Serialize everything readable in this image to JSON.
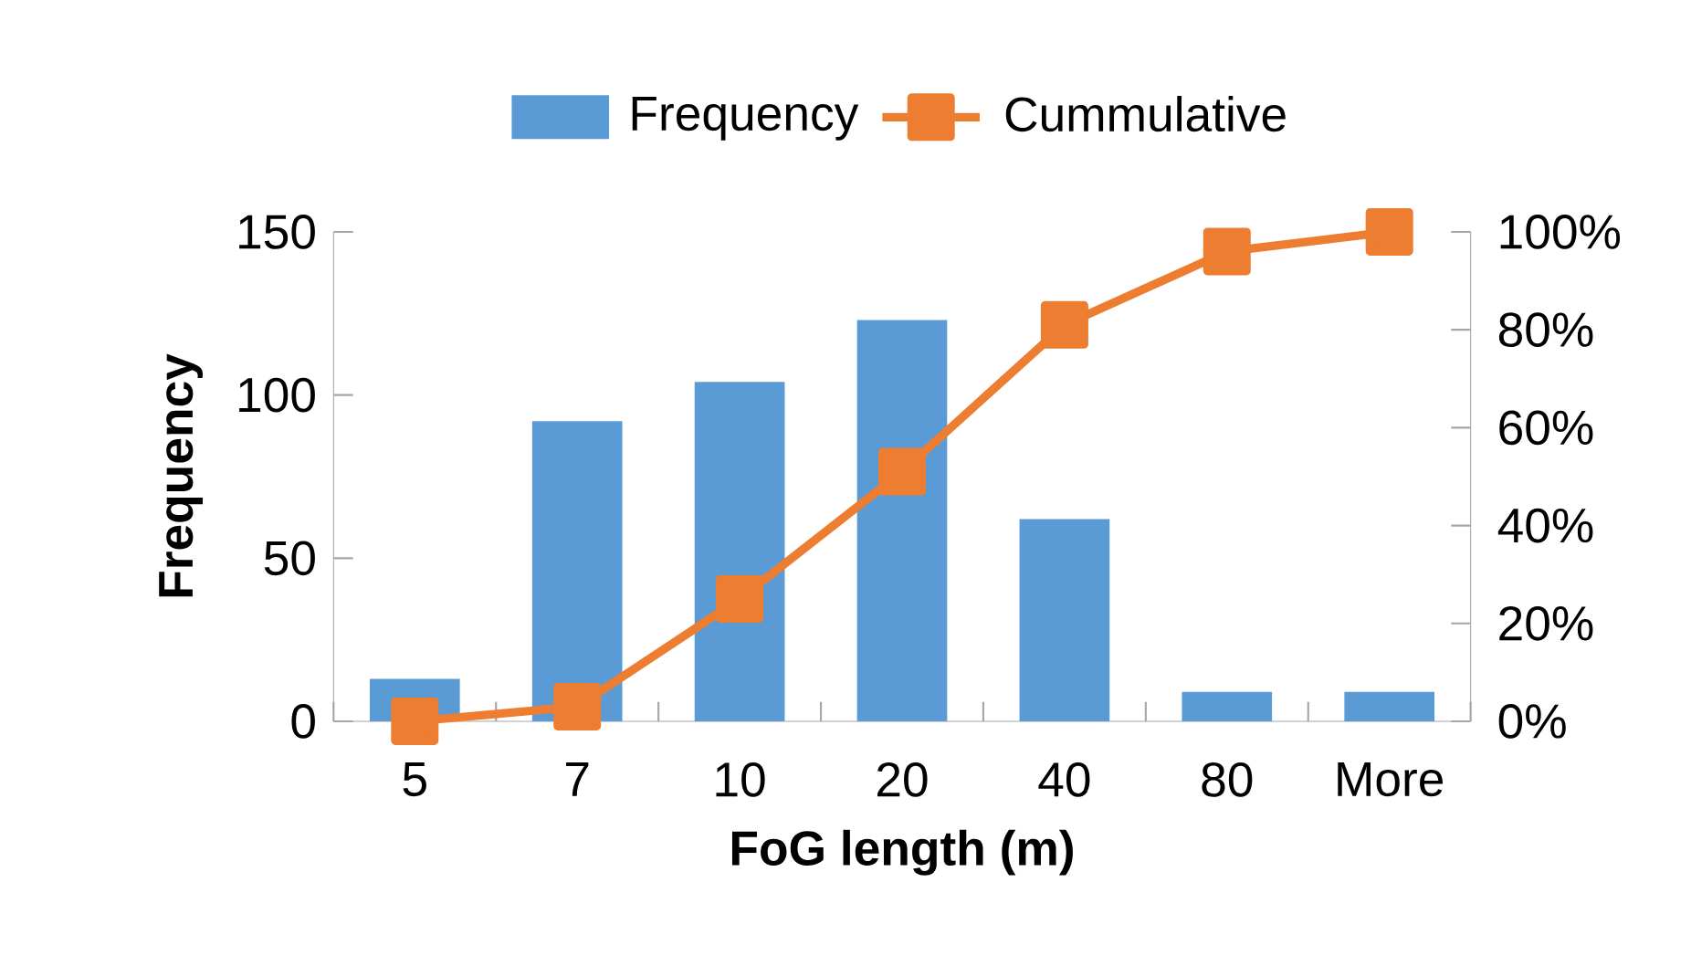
{
  "chart_data": {
    "type": "bar",
    "xlabel": "FoG length (m)",
    "ylabel": "Frequency",
    "categories": [
      "5",
      "7",
      "10",
      "20",
      "40",
      "80",
      "More"
    ],
    "series": [
      {
        "name": "Frequency",
        "color": "#5b9bd5",
        "values": [
          13,
          92,
          104,
          123,
          62,
          9,
          9
        ]
      },
      {
        "name": "Cummulative",
        "type": "line",
        "axis": "y2",
        "color": "#ed7d31",
        "marker": "square",
        "values": [
          0,
          3,
          25,
          51,
          81,
          96,
          100
        ]
      }
    ],
    "ylim": [
      0,
      150
    ],
    "yticks": [
      0,
      50,
      100,
      150
    ],
    "y2lim": [
      0,
      100
    ],
    "y2ticks": [
      {
        "value": 0,
        "label": "0%"
      },
      {
        "value": 20,
        "label": "20%"
      },
      {
        "value": 40,
        "label": "40%"
      },
      {
        "value": 60,
        "label": "60%"
      },
      {
        "value": 80,
        "label": "80%"
      },
      {
        "value": 100,
        "label": "100%"
      }
    ],
    "legend": "top",
    "grid": false
  }
}
